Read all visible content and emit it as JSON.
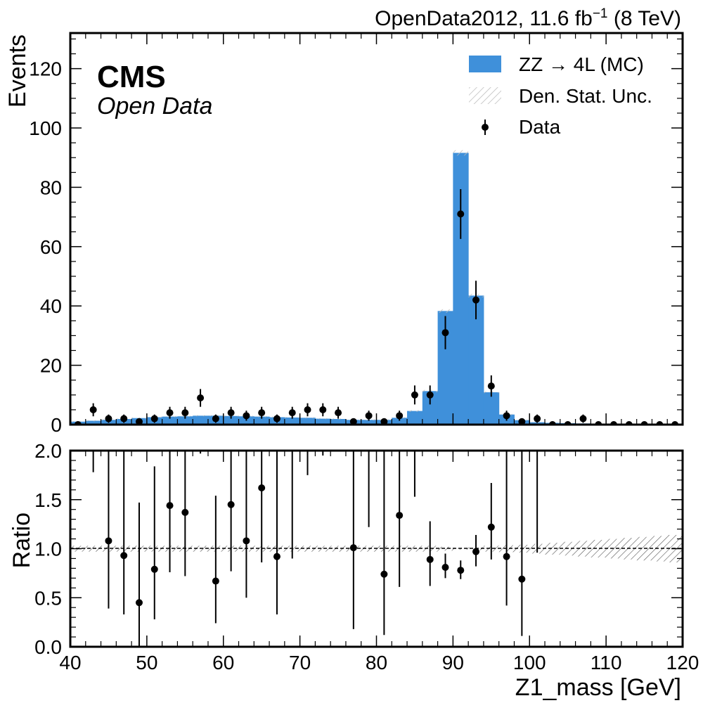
{
  "chart_data": [
    {
      "type": "histogram",
      "panel": "main",
      "header_right": "OpenData2012, 11.6 fb",
      "header_right_sup": "−1",
      "header_right_tail": " (8 TeV)",
      "experiment_label": "CMS",
      "experiment_sublabel": "Open Data",
      "xlabel": "Z1_mass [GeV]",
      "ylabel": "Events",
      "xlim": [
        40,
        120
      ],
      "ylim": [
        0,
        132
      ],
      "yticks": [
        0,
        20,
        40,
        60,
        80,
        100,
        120
      ],
      "legend_position": "top-right",
      "legend": [
        {
          "label": "ZZ → 4L (MC)",
          "kind": "fill",
          "color": "#3f90da"
        },
        {
          "label": "Den. Stat. Unc.",
          "kind": "hatch",
          "color": "#bbbbbb"
        },
        {
          "label": "Data",
          "kind": "errorbar",
          "color": "#000000"
        }
      ],
      "mc": {
        "name": "ZZ → 4L (MC)",
        "color": "#3f90da",
        "bin_edges": [
          40,
          42,
          44,
          46,
          48,
          50,
          52,
          54,
          56,
          58,
          60,
          62,
          64,
          66,
          68,
          70,
          72,
          74,
          76,
          78,
          80,
          82,
          84,
          86,
          88,
          90,
          92,
          94,
          96,
          98,
          100,
          102,
          104,
          106,
          108,
          110,
          112,
          114,
          116,
          118,
          120
        ],
        "values": [
          1.0,
          1.3,
          1.6,
          1.9,
          2.2,
          2.5,
          2.7,
          2.8,
          3.0,
          3.0,
          2.9,
          2.8,
          2.7,
          2.5,
          2.4,
          2.3,
          2.0,
          1.9,
          1.6,
          1.6,
          1.6,
          2.3,
          4.6,
          11.3,
          38.3,
          91.6,
          43.5,
          10.9,
          3.4,
          1.5,
          0.8,
          0.6,
          0.5,
          0.4,
          0.3,
          0.3,
          0.25,
          0.2,
          0.2,
          0.2
        ],
        "uncertainty": [
          0.2,
          0.2,
          0.2,
          0.2,
          0.2,
          0.2,
          0.2,
          0.2,
          0.2,
          0.2,
          0.2,
          0.2,
          0.2,
          0.2,
          0.2,
          0.2,
          0.2,
          0.2,
          0.2,
          0.2,
          0.2,
          0.2,
          0.3,
          0.4,
          0.6,
          0.9,
          0.6,
          0.3,
          0.2,
          0.2,
          0.1,
          0.1,
          0.1,
          0.1,
          0.1,
          0.1,
          0.1,
          0.1,
          0.1,
          0.1
        ]
      },
      "data": {
        "name": "Data",
        "x": [
          41,
          43,
          45,
          47,
          49,
          51,
          53,
          55,
          57,
          59,
          61,
          63,
          65,
          67,
          69,
          71,
          73,
          75,
          77,
          79,
          81,
          83,
          85,
          87,
          89,
          91,
          93,
          95,
          97,
          99,
          101,
          103,
          105,
          107,
          109,
          111,
          113,
          115,
          117,
          119
        ],
        "y": [
          0,
          5,
          2,
          2,
          1,
          2,
          4,
          4,
          9,
          2,
          4,
          3,
          4,
          2,
          4,
          5,
          5,
          4,
          1,
          3,
          1,
          3,
          10,
          10,
          31,
          71,
          42,
          13,
          3,
          1,
          2,
          0,
          0,
          2,
          0,
          0,
          0,
          0,
          0,
          0
        ],
        "yerr": [
          0,
          2.2,
          1.4,
          1.4,
          1,
          1.4,
          2,
          2,
          3,
          1.4,
          2,
          1.7,
          2,
          1.4,
          2,
          2.2,
          2.2,
          2,
          1,
          1.7,
          1,
          1.7,
          3.2,
          3.2,
          5.6,
          8.4,
          6.5,
          3.6,
          1.7,
          1,
          1.4,
          0,
          0,
          1.4,
          0,
          0,
          0,
          0,
          0,
          0
        ]
      }
    },
    {
      "type": "ratio",
      "panel": "ratio",
      "xlabel": "Z1_mass [GeV]",
      "ylabel": "Ratio",
      "xlim": [
        40,
        120
      ],
      "ylim": [
        0,
        2
      ],
      "xticks": [
        40,
        50,
        60,
        70,
        80,
        90,
        100,
        110,
        120
      ],
      "yticks": [
        "0.0",
        "0.5",
        "1.0",
        "1.5",
        "2.0"
      ],
      "reference_line": 1.0,
      "band_half_width": [
        0.03,
        0.03,
        0.03,
        0.03,
        0.03,
        0.03,
        0.03,
        0.03,
        0.03,
        0.03,
        0.03,
        0.03,
        0.03,
        0.03,
        0.03,
        0.03,
        0.03,
        0.03,
        0.03,
        0.03,
        0.03,
        0.03,
        0.03,
        0.03,
        0.02,
        0.01,
        0.015,
        0.03,
        0.035,
        0.04,
        0.05,
        0.06,
        0.07,
        0.08,
        0.09,
        0.1,
        0.11,
        0.12,
        0.13,
        0.14
      ],
      "points": [
        {
          "x": 43,
          "y": null,
          "lo": 1.78,
          "hi": 2.0
        },
        {
          "x": 45,
          "y": 1.08,
          "lo": 0.39,
          "hi": 2.0
        },
        {
          "x": 47,
          "y": 0.93,
          "lo": 0.33,
          "hi": 2.0
        },
        {
          "x": 49,
          "y": 0.45,
          "lo": 0.0,
          "hi": 1.47
        },
        {
          "x": 51,
          "y": 0.79,
          "lo": 0.28,
          "hi": 1.84
        },
        {
          "x": 53,
          "y": 1.44,
          "lo": 0.76,
          "hi": 2.0
        },
        {
          "x": 55,
          "y": 1.37,
          "lo": 0.72,
          "hi": 2.0
        },
        {
          "x": 57,
          "y": null,
          "lo": 1.97,
          "hi": 2.0
        },
        {
          "x": 59,
          "y": 0.67,
          "lo": 0.24,
          "hi": 1.54
        },
        {
          "x": 61,
          "y": 1.45,
          "lo": 0.77,
          "hi": 2.0
        },
        {
          "x": 63,
          "y": 1.08,
          "lo": 0.5,
          "hi": 2.0
        },
        {
          "x": 65,
          "y": 1.62,
          "lo": 0.86,
          "hi": 2.0
        },
        {
          "x": 67,
          "y": 0.92,
          "lo": 0.33,
          "hi": 2.0
        },
        {
          "x": 69,
          "y": null,
          "lo": 0.9,
          "hi": 2.0
        },
        {
          "x": 71,
          "y": null,
          "lo": 1.75,
          "hi": 2.0
        },
        {
          "x": 73,
          "y": null,
          "lo": 1.95,
          "hi": 2.0
        },
        {
          "x": 77,
          "y": 1.01,
          "lo": 0.18,
          "hi": 2.0
        },
        {
          "x": 79,
          "y": null,
          "lo": 1.22,
          "hi": 2.0
        },
        {
          "x": 81,
          "y": 0.74,
          "lo": 0.12,
          "hi": 2.0
        },
        {
          "x": 83,
          "y": 1.34,
          "lo": 0.61,
          "hi": 2.0
        },
        {
          "x": 85,
          "y": null,
          "lo": 1.53,
          "hi": 2.0
        },
        {
          "x": 87,
          "y": 0.89,
          "lo": 0.62,
          "hi": 1.28
        },
        {
          "x": 89,
          "y": 0.81,
          "lo": 0.7,
          "hi": 0.95
        },
        {
          "x": 91,
          "y": 0.78,
          "lo": 0.69,
          "hi": 0.88
        },
        {
          "x": 93,
          "y": 0.97,
          "lo": 0.82,
          "hi": 1.14
        },
        {
          "x": 95,
          "y": 1.22,
          "lo": 0.89,
          "hi": 1.67
        },
        {
          "x": 97,
          "y": 0.92,
          "lo": 0.42,
          "hi": 2.0
        },
        {
          "x": 99,
          "y": 0.69,
          "lo": 0.11,
          "hi": 2.0
        },
        {
          "x": 101,
          "y": null,
          "lo": 0.96,
          "hi": 2.0
        }
      ]
    }
  ]
}
